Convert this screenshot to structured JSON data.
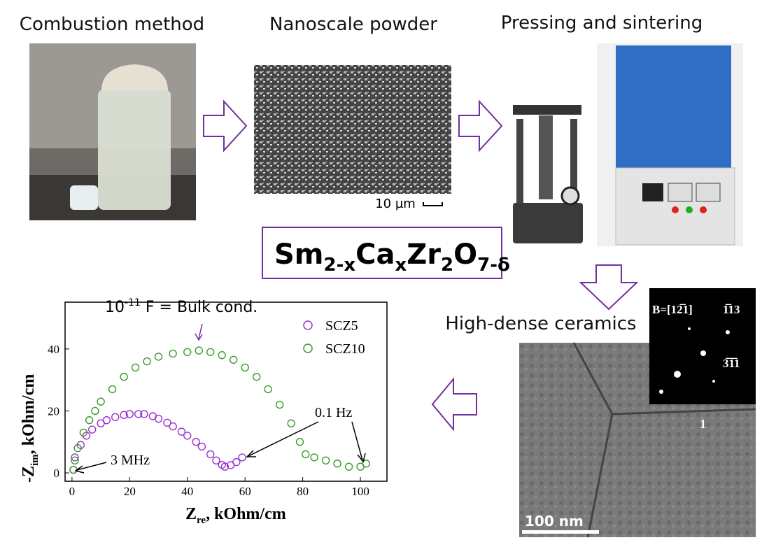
{
  "labels": {
    "combustion": "Combustion method",
    "powder": "Nanoscale powder",
    "pressing": "Pressing and sintering",
    "ceramics": "High-dense ceramics",
    "sem_scale": "10 µm",
    "tem_scale": "100 nm",
    "zone_axis": "B=[12̅1]",
    "spot_1": "1̅13",
    "spot_2": "3̅1̅1",
    "grain": "1"
  },
  "formula": {
    "sm": "Sm",
    "sm_sub": "2-x",
    "ca": "Ca",
    "ca_sub": "x",
    "zr": "Zr",
    "zr_sub": "2",
    "o": "O",
    "o_sub": "7-δ"
  },
  "chart_data": {
    "type": "scatter",
    "x_label": {
      "main": "Z",
      "sub": "re",
      "rest": ", kOhm/cm"
    },
    "y_label": {
      "main": "-Z",
      "sub": "im",
      "rest": ", kOhm/cm"
    },
    "annotations": {
      "bulk_base": "10",
      "bulk_exp": "-11",
      "bulk_rest": " F = Bulk cond.",
      "high_f": "3 MHz",
      "low_f": "0.1 Hz"
    },
    "xlim": [
      -2.4,
      109.2
    ],
    "ylim": [
      -2.7,
      55.1
    ],
    "xticks": [
      0,
      20,
      40,
      60,
      80,
      100
    ],
    "yticks": [
      0,
      20,
      40
    ],
    "series": [
      {
        "name": "SCZ5",
        "color": "#9b30d0",
        "x": [
          0.5,
          1,
          3,
          5,
          7,
          10,
          12,
          15,
          18,
          20,
          23,
          25,
          28,
          30,
          33,
          35,
          38,
          40,
          43,
          45,
          48,
          50,
          52,
          53,
          55,
          57,
          59
        ],
        "y": [
          1,
          5,
          9,
          12,
          14,
          16,
          17,
          18,
          18.7,
          19,
          19,
          19,
          18.3,
          17.5,
          16.2,
          15,
          13.3,
          12,
          10,
          8.5,
          6,
          4,
          2.6,
          2,
          2.5,
          3.5,
          5
        ]
      },
      {
        "name": "SCZ10",
        "color": "#3a9a2a",
        "x": [
          0.5,
          1,
          2,
          4,
          6,
          8,
          10,
          14,
          18,
          22,
          26,
          30,
          35,
          40,
          44,
          48,
          52,
          56,
          60,
          64,
          68,
          72,
          76,
          79,
          81,
          84,
          88,
          92,
          96,
          100,
          102
        ],
        "y": [
          1,
          4,
          8,
          13,
          17,
          20,
          23,
          27,
          31,
          34,
          36,
          37.5,
          38.5,
          39,
          39.5,
          39,
          38,
          36.5,
          34,
          31,
          27,
          22,
          16,
          10,
          6,
          5,
          4,
          3,
          2,
          2,
          3
        ]
      }
    ]
  }
}
